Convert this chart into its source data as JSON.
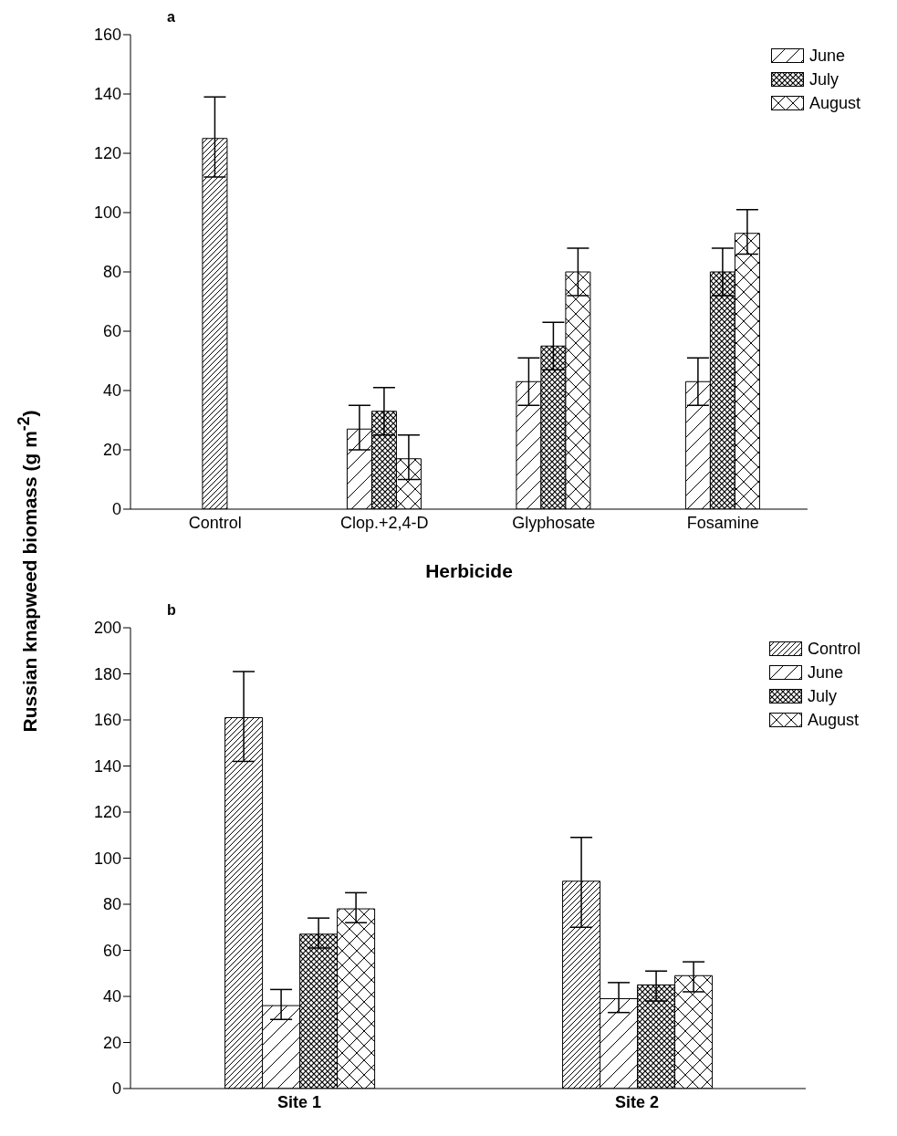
{
  "chart_data": [
    {
      "type": "bar",
      "title": "a",
      "xlabel": "Herbicide",
      "ylabel": "Russian knapweed biomass (g m$^{-2}$)",
      "categories": [
        "Control",
        "Clop.+2,4-D",
        "Glyphosate",
        "Fosamine"
      ],
      "series": [
        {
          "color": "#000000",
          "values": [
            125,
            null,
            null,
            null
          ],
          "errors": [
            [
              112,
              139
            ],
            null,
            null,
            null
          ]
        },
        {
          "name": "June",
          "color": "#000000",
          "values": [
            null,
            27,
            43,
            43
          ],
          "errors": [
            null,
            [
              20,
              35
            ],
            [
              35,
              51
            ],
            [
              35,
              51
            ]
          ]
        },
        {
          "name": "July",
          "color": "#000000",
          "values": [
            null,
            33,
            55,
            80
          ],
          "errors": [
            null,
            [
              25,
              41
            ],
            [
              47,
              63
            ],
            [
              72,
              88
            ]
          ]
        },
        {
          "name": "August",
          "color": "#000000",
          "values": [
            null,
            17,
            80,
            93
          ],
          "errors": [
            null,
            [
              10,
              25
            ],
            [
              72,
              88
            ],
            [
              86,
              101
            ]
          ]
        }
      ],
      "ylim": [
        0,
        160
      ],
      "yticks": [
        0,
        20,
        40,
        60,
        80,
        100,
        120,
        140,
        160
      ],
      "legend": "top right",
      "grid": false
    },
    {
      "type": "bar",
      "title": "b",
      "categories": [
        "Site 1",
        "Site 2"
      ],
      "series": [
        {
          "name": "Control",
          "color": "#000000",
          "values": [
            161,
            90
          ],
          "errors": [
            [
              142,
              181
            ],
            [
              70,
              109
            ]
          ]
        },
        {
          "name": "June",
          "color": "#000000",
          "values": [
            36,
            39
          ],
          "errors": [
            [
              30,
              43
            ],
            [
              33,
              46
            ]
          ]
        },
        {
          "name": "July",
          "color": "#000000",
          "values": [
            67,
            45
          ],
          "errors": [
            [
              61,
              74
            ],
            [
              38,
              51
            ]
          ]
        },
        {
          "name": "August",
          "color": "#000000",
          "values": [
            78,
            49
          ],
          "errors": [
            [
              72,
              85
            ],
            [
              42,
              55
            ]
          ]
        }
      ],
      "ylim": [
        0,
        200
      ],
      "yticks": [
        0,
        20,
        40,
        60,
        80,
        100,
        120,
        140,
        160,
        180,
        200
      ],
      "legend": "top right",
      "grid": false
    }
  ]
}
